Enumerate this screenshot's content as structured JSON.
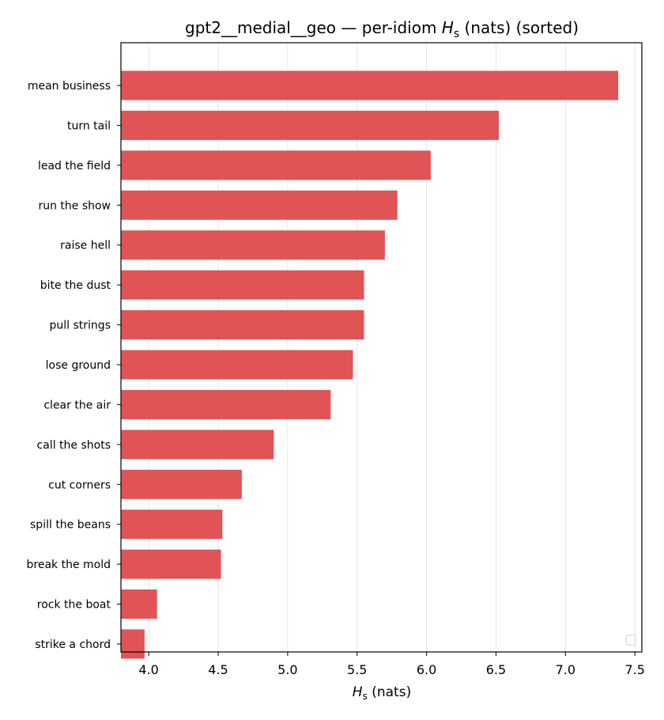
{
  "chart_data": {
    "type": "bar",
    "orientation": "horizontal",
    "title_parts": {
      "prefix": "gpt2__medial__geo — per-idiom ",
      "symbol": "H",
      "subscript": "s",
      "suffix": " (nats) (sorted)"
    },
    "xlabel_parts": {
      "symbol": "H",
      "subscript": "s",
      "suffix": " (nats)"
    },
    "categories": [
      "mean business",
      "turn tail",
      "lead the field",
      "run the show",
      "raise hell",
      "bite the dust",
      "pull strings",
      "lose ground",
      "clear the air",
      "call the shots",
      "cut corners",
      "spill the beans",
      "break the mold",
      "rock the boat",
      "strike a chord"
    ],
    "values": [
      7.38,
      6.52,
      6.03,
      5.79,
      5.7,
      5.55,
      5.55,
      5.47,
      5.31,
      4.9,
      4.67,
      4.53,
      4.52,
      4.06,
      3.97
    ],
    "xlim": [
      3.8,
      7.55
    ],
    "xticks": [
      4.0,
      4.5,
      5.0,
      5.5,
      6.0,
      6.5,
      7.0,
      7.5
    ],
    "xtick_labels": [
      "4.0",
      "4.5",
      "5.0",
      "5.5",
      "6.0",
      "6.5",
      "7.0",
      "7.5"
    ],
    "grid": "x",
    "legend": "lower-right (empty)",
    "bar_color": "#e05456",
    "grid_color": "#e6e6e6"
  }
}
